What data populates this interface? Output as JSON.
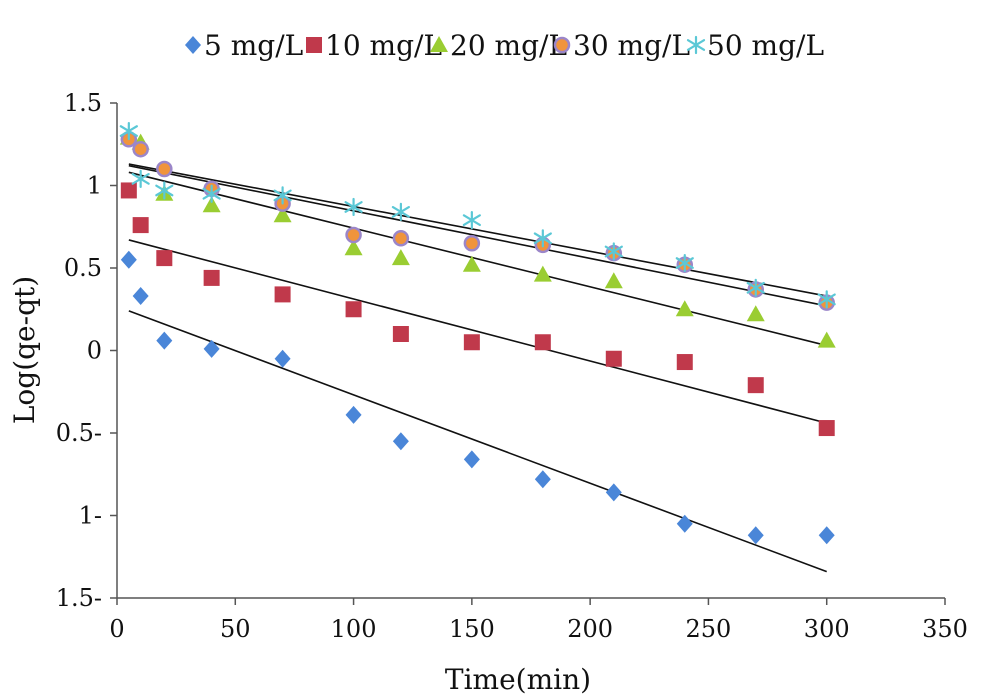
{
  "chart_data": {
    "type": "scatter",
    "title": "",
    "xlabel": "Time(min)",
    "ylabel": "Log(qe-qt)",
    "xlim": [
      0,
      350
    ],
    "ylim": [
      -1.5,
      1.5
    ],
    "x_ticks": [
      0,
      50,
      100,
      150,
      200,
      250,
      300,
      350
    ],
    "x_tick_labels": [
      "0",
      "50",
      "100",
      "150",
      "200",
      "250",
      "300",
      "350"
    ],
    "y_ticks": [
      1.5,
      1,
      0.5,
      0,
      -0.5,
      -1,
      -1.5
    ],
    "y_tick_labels": [
      "1.5",
      "1",
      "0.5",
      "0",
      "0.5-",
      "1-",
      "1.5-"
    ],
    "grid": false,
    "legend_position": "top",
    "series": [
      {
        "name": "5 mg/L",
        "marker": "diamond",
        "color": "#4a86d8",
        "points": [
          [
            5,
            0.55
          ],
          [
            10,
            0.33
          ],
          [
            20,
            0.06
          ],
          [
            40,
            0.01
          ],
          [
            70,
            -0.05
          ],
          [
            100,
            -0.39
          ],
          [
            120,
            -0.55
          ],
          [
            150,
            -0.66
          ],
          [
            180,
            -0.78
          ],
          [
            210,
            -0.86
          ],
          [
            240,
            -1.05
          ],
          [
            270,
            -1.12
          ],
          [
            300,
            -1.12
          ]
        ],
        "trendline": [
          [
            5,
            0.24
          ],
          [
            300,
            -1.34
          ]
        ]
      },
      {
        "name": "10 mg/L",
        "marker": "square",
        "color": "#c0394b",
        "points": [
          [
            5,
            0.97
          ],
          [
            10,
            0.76
          ],
          [
            20,
            0.56
          ],
          [
            40,
            0.44
          ],
          [
            70,
            0.34
          ],
          [
            100,
            0.25
          ],
          [
            120,
            0.1
          ],
          [
            150,
            0.05
          ],
          [
            180,
            0.05
          ],
          [
            210,
            -0.05
          ],
          [
            240,
            -0.07
          ],
          [
            270,
            -0.21
          ],
          [
            300,
            -0.47
          ]
        ],
        "trendline": [
          [
            5,
            0.67
          ],
          [
            300,
            -0.44
          ]
        ]
      },
      {
        "name": "20 mg/L",
        "marker": "triangle",
        "color": "#9acd32",
        "points": [
          [
            5,
            1.29
          ],
          [
            10,
            1.26
          ],
          [
            20,
            0.95
          ],
          [
            40,
            0.88
          ],
          [
            70,
            0.82
          ],
          [
            100,
            0.62
          ],
          [
            120,
            0.56
          ],
          [
            150,
            0.52
          ],
          [
            180,
            0.46
          ],
          [
            210,
            0.42
          ],
          [
            240,
            0.25
          ],
          [
            270,
            0.22
          ],
          [
            300,
            0.06
          ]
        ],
        "trendline": [
          [
            5,
            1.08
          ],
          [
            300,
            0.03
          ]
        ]
      },
      {
        "name": "30 mg/L",
        "marker": "circle",
        "color": "#f0943c",
        "stroke": "#9b86c9",
        "points": [
          [
            5,
            1.28
          ],
          [
            10,
            1.22
          ],
          [
            20,
            1.1
          ],
          [
            40,
            0.98
          ],
          [
            70,
            0.89
          ],
          [
            100,
            0.7
          ],
          [
            120,
            0.68
          ],
          [
            150,
            0.65
          ],
          [
            180,
            0.64
          ],
          [
            210,
            0.59
          ],
          [
            240,
            0.52
          ],
          [
            270,
            0.37
          ],
          [
            300,
            0.29
          ]
        ],
        "trendline": [
          [
            5,
            1.12
          ],
          [
            300,
            0.27
          ]
        ]
      },
      {
        "name": "50 mg/L",
        "marker": "asterisk",
        "color": "#5bc8d6",
        "points": [
          [
            5,
            1.33
          ],
          [
            10,
            1.04
          ],
          [
            20,
            0.97
          ],
          [
            40,
            0.95
          ],
          [
            70,
            0.94
          ],
          [
            100,
            0.87
          ],
          [
            120,
            0.84
          ],
          [
            150,
            0.79
          ],
          [
            180,
            0.68
          ],
          [
            210,
            0.6
          ],
          [
            240,
            0.53
          ],
          [
            270,
            0.38
          ],
          [
            300,
            0.31
          ]
        ],
        "trendline": [
          [
            5,
            1.13
          ],
          [
            300,
            0.33
          ]
        ]
      }
    ]
  }
}
